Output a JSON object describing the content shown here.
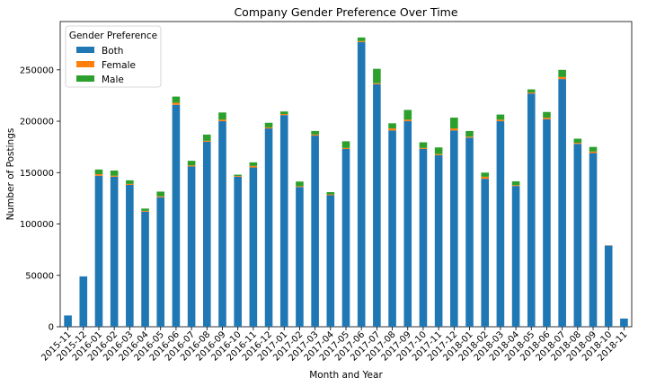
{
  "chart_data": {
    "type": "bar",
    "stacked": true,
    "title": "Company Gender Preference Over Time",
    "xlabel": "Month and Year",
    "ylabel": "Number of Postings",
    "ylim": [
      0,
      297000
    ],
    "yticks": [
      0,
      50000,
      100000,
      150000,
      200000,
      250000
    ],
    "categories": [
      "2015-11",
      "2015-12",
      "2016-01",
      "2016-02",
      "2016-03",
      "2016-04",
      "2016-05",
      "2016-06",
      "2016-07",
      "2016-08",
      "2016-09",
      "2016-10",
      "2016-11",
      "2016-12",
      "2017-01",
      "2017-02",
      "2017-03",
      "2017-04",
      "2017-05",
      "2017-06",
      "2017-07",
      "2017-08",
      "2017-09",
      "2017-10",
      "2017-11",
      "2017-12",
      "2018-01",
      "2018-02",
      "2018-03",
      "2018-04",
      "2018-05",
      "2018-06",
      "2018-07",
      "2018-08",
      "2018-09",
      "2018-10",
      "2018-11"
    ],
    "legend": {
      "title": "Gender Preference",
      "position": "top-left"
    },
    "series": [
      {
        "name": "Both",
        "color": "#1f77b4",
        "values": [
          11000,
          49000,
          147000,
          146000,
          138000,
          112000,
          126000,
          216000,
          156000,
          180000,
          200000,
          146000,
          155000,
          193000,
          206000,
          136000,
          186000,
          128000,
          173000,
          277000,
          236000,
          191000,
          200000,
          173000,
          167000,
          191000,
          184000,
          144000,
          200000,
          137000,
          227000,
          202000,
          241000,
          178000,
          169000,
          79000,
          8000
        ]
      },
      {
        "name": "Female",
        "color": "#ff7f0e",
        "values": [
          0,
          0,
          1500,
          1000,
          1000,
          800,
          1000,
          2000,
          1000,
          1000,
          1500,
          800,
          1500,
          1000,
          1000,
          800,
          1000,
          800,
          1000,
          1000,
          1000,
          2000,
          1500,
          1000,
          1000,
          2000,
          1000,
          2000,
          1500,
          800,
          1000,
          1500,
          2000,
          1000,
          1500,
          200,
          0
        ]
      },
      {
        "name": "Male",
        "color": "#2ca02c",
        "values": [
          0,
          0,
          4500,
          5000,
          3500,
          2200,
          4500,
          6000,
          4500,
          6000,
          7000,
          1200,
          3500,
          4500,
          2500,
          4500,
          3500,
          2200,
          6500,
          3500,
          14000,
          5000,
          9500,
          5500,
          6500,
          10500,
          5500,
          4000,
          5000,
          3700,
          3000,
          5500,
          7000,
          4000,
          4500,
          0,
          0
        ]
      }
    ]
  }
}
